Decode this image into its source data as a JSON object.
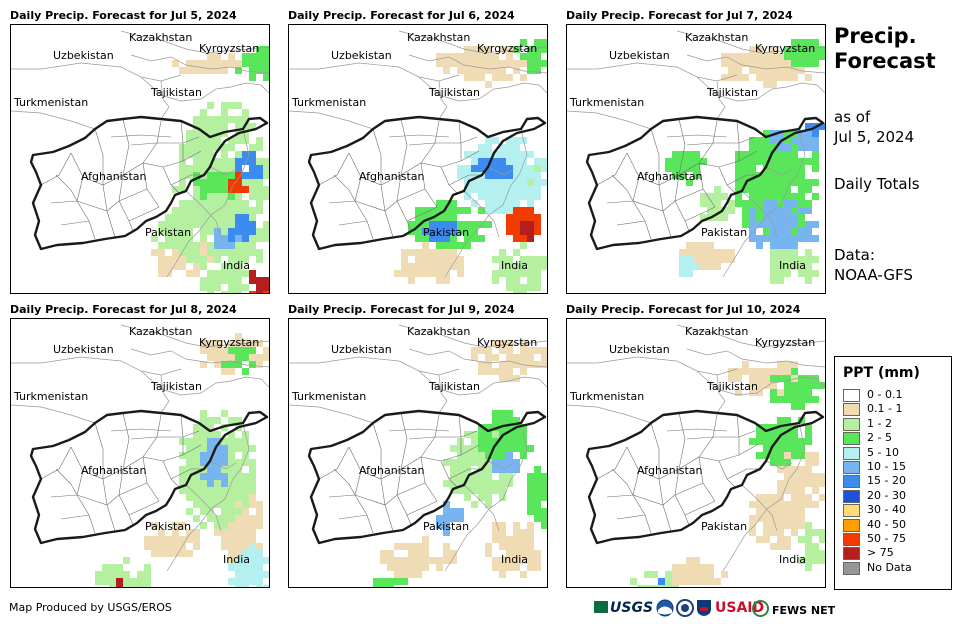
{
  "panels": [
    {
      "title": "Daily Precip. Forecast for Jul 5, 2024"
    },
    {
      "title": "Daily Precip. Forecast for Jul 6, 2024"
    },
    {
      "title": "Daily Precip. Forecast for Jul 7, 2024"
    },
    {
      "title": "Daily Precip. Forecast for Jul 8, 2024"
    },
    {
      "title": "Daily Precip. Forecast for Jul 9, 2024"
    },
    {
      "title": "Daily Precip. Forecast for Jul 10, 2024"
    }
  ],
  "map_labels": {
    "kazakhstan": "Kazakhstan",
    "uzbekistan": "Uzbekistan",
    "kyrgyzstan": "Kyrgyzstan",
    "tajikistan": "Tajikistan",
    "turkmenistan": "Turkmenistan",
    "afghanistan": "Afghanistan",
    "pakistan": "Pakistan",
    "india": "India"
  },
  "side": {
    "title_line1": "Precip.",
    "title_line2": "Forecast",
    "as_of_line1": "as of",
    "as_of_line2": "Jul 5, 2024",
    "totals": "Daily Totals",
    "data_line1": "Data:",
    "data_line2": "NOAA-GFS"
  },
  "legend": {
    "title": "PPT (mm)",
    "items": [
      {
        "label": "0 - 0.1",
        "color": "#ffffff"
      },
      {
        "label": "0.1 - 1",
        "color": "#f0dcb4"
      },
      {
        "label": "1 - 2",
        "color": "#b4f0a0"
      },
      {
        "label": "2 - 5",
        "color": "#5ae65a"
      },
      {
        "label": "5 - 10",
        "color": "#b4f0f0"
      },
      {
        "label": "10 - 15",
        "color": "#78b4f0"
      },
      {
        "label": "15 - 20",
        "color": "#3c8cf0"
      },
      {
        "label": "20 - 30",
        "color": "#1e50dc"
      },
      {
        "label": "30 - 40",
        "color": "#ffdc78"
      },
      {
        "label": "40 - 50",
        "color": "#ffa000"
      },
      {
        "label": "50 - 75",
        "color": "#f03c00"
      },
      {
        "label": "> 75",
        "color": "#b41e1e"
      },
      {
        "label": "No Data",
        "color": "#969696"
      }
    ]
  },
  "footer": {
    "credit": "Map Produced by USGS/EROS",
    "logo_usgs": "USGS",
    "logo_usaid": "USAID",
    "logo_fews": "FEWS NET"
  }
}
